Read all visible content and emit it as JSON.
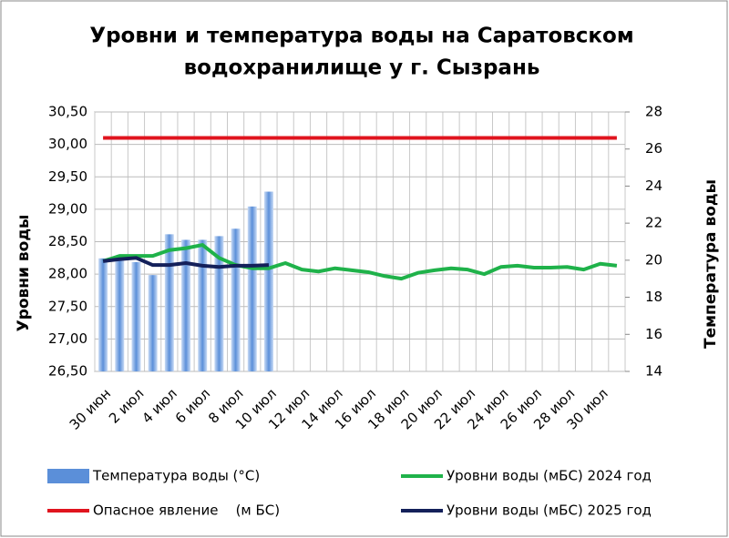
{
  "chart_data": {
    "type": "combo",
    "title": [
      "Уровни и температура  воды на Саратовском",
      "водохранилище у  г. Сызрань"
    ],
    "y_label": "Уровни воды",
    "y2_label": "Температура воды",
    "categories": [
      "30 июн",
      null,
      "2 июл",
      null,
      "4 июл",
      null,
      "6 июл",
      null,
      "8 июл",
      null,
      "10 июл",
      null,
      "12 июл",
      null,
      "14 июл",
      null,
      "16 июл",
      null,
      "18 июл",
      null,
      "20 июл",
      null,
      "22 июл",
      null,
      "24 июл",
      null,
      "26 июл",
      null,
      "28 июл",
      null,
      "30 июл",
      null
    ],
    "ylim": [
      26.5,
      30.5
    ],
    "yticks": [
      {
        "value": 26.5,
        "label": "26,50"
      },
      {
        "value": 27,
        "label": "27,00"
      },
      {
        "value": 27.5,
        "label": "27,50"
      },
      {
        "value": 28,
        "label": "28,00"
      },
      {
        "value": 28.5,
        "label": "28,50"
      },
      {
        "value": 29,
        "label": "29,00"
      },
      {
        "value": 29.5,
        "label": "29,50"
      },
      {
        "value": 30,
        "label": "30,00"
      },
      {
        "value": 30.5,
        "label": "30,50"
      }
    ],
    "y2lim": [
      14,
      28
    ],
    "y2ticks": [
      14,
      16,
      18,
      20,
      22,
      24,
      26,
      28
    ],
    "grid": true,
    "series": [
      {
        "name": "Температура воды (°С)",
        "type": "bar",
        "axis": "y2",
        "color": "#5b8fd9",
        "values": [
          20.1,
          20.1,
          19.9,
          19.2,
          21.4,
          21.1,
          21.1,
          21.3,
          21.7,
          22.9,
          23.7,
          null,
          null,
          null,
          null,
          null,
          null,
          null,
          null,
          null,
          null,
          null,
          null,
          null,
          null,
          null,
          null,
          null,
          null,
          null,
          null,
          null
        ]
      },
      {
        "name": "Уровни воды (мБС) 2024 год",
        "type": "line",
        "color": "#1fb24a",
        "values": [
          28.2,
          28.28,
          28.28,
          28.28,
          28.37,
          28.4,
          28.45,
          28.25,
          28.14,
          28.09,
          28.09,
          28.17,
          28.07,
          28.04,
          28.09,
          28.06,
          28.03,
          27.97,
          27.93,
          28.02,
          28.06,
          28.09,
          28.07,
          28.0,
          28.11,
          28.13,
          28.1,
          28.1,
          28.11,
          28.07,
          28.16,
          28.13
        ]
      },
      {
        "name": "Опасное явление    (м БС)",
        "type": "line",
        "color": "#e0141e",
        "values": [
          30.1,
          30.1,
          30.1,
          30.1,
          30.1,
          30.1,
          30.1,
          30.1,
          30.1,
          30.1,
          30.1,
          30.1,
          30.1,
          30.1,
          30.1,
          30.1,
          30.1,
          30.1,
          30.1,
          30.1,
          30.1,
          30.1,
          30.1,
          30.1,
          30.1,
          30.1,
          30.1,
          30.1,
          30.1,
          30.1,
          30.1,
          30.1
        ]
      },
      {
        "name": "Уровни воды (мБС) 2025 год",
        "type": "line",
        "color": "#14205a",
        "values": [
          28.2,
          28.23,
          28.25,
          28.14,
          28.14,
          28.17,
          28.13,
          28.11,
          28.13,
          28.13,
          28.14,
          null,
          null,
          null,
          null,
          null,
          null,
          null,
          null,
          null,
          null,
          null,
          null,
          null,
          null,
          null,
          null,
          null,
          null,
          null,
          null,
          null
        ]
      }
    ]
  }
}
